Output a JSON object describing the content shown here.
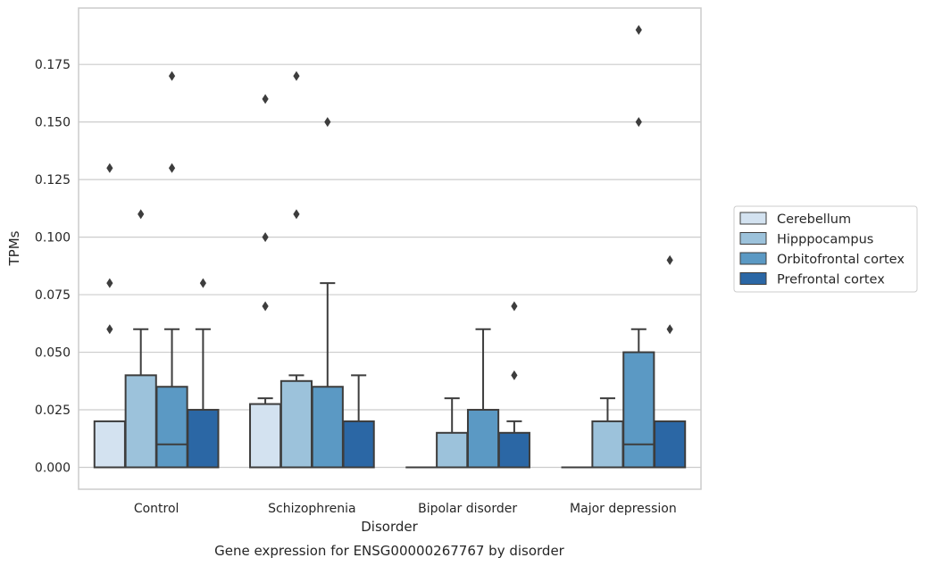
{
  "caption": "Gene expression for ENSG00000267767 by disorder",
  "chart_data": {
    "type": "box",
    "xlabel": "Disorder",
    "ylabel": "TPMs",
    "ylim": [
      -0.0095,
      0.1995
    ],
    "yticks": [
      0.0,
      0.025,
      0.05,
      0.075,
      0.1,
      0.125,
      0.15,
      0.175
    ],
    "ytick_labels": [
      "0.000",
      "0.025",
      "0.050",
      "0.075",
      "0.100",
      "0.125",
      "0.150",
      "0.175"
    ],
    "grid": "horizontal",
    "categories": [
      "Control",
      "Schizophrenia",
      "Bipolar disorder",
      "Major depression"
    ],
    "legend_position": "right",
    "series": [
      {
        "name": "Cerebellum",
        "color": "#d3e2f0",
        "boxes": [
          {
            "q1": 0.0,
            "median": 0.0,
            "q3": 0.02,
            "whisker_low": 0.0,
            "whisker_high": 0.02,
            "outliers": [
              0.06,
              0.08,
              0.13
            ]
          },
          {
            "q1": 0.0,
            "median": 0.0,
            "q3": 0.0275,
            "whisker_low": 0.0,
            "whisker_high": 0.03,
            "outliers": [
              0.07,
              0.1,
              0.16
            ]
          },
          {
            "q1": 0.0,
            "median": 0.0,
            "q3": 0.0,
            "whisker_low": 0.0,
            "whisker_high": 0.0,
            "outliers": []
          },
          {
            "q1": 0.0,
            "median": 0.0,
            "q3": 0.0,
            "whisker_low": 0.0,
            "whisker_high": 0.0,
            "outliers": []
          }
        ]
      },
      {
        "name": "Hipppocampus",
        "color": "#9cc2db",
        "boxes": [
          {
            "q1": 0.0,
            "median": 0.0,
            "q3": 0.04,
            "whisker_low": 0.0,
            "whisker_high": 0.06,
            "outliers": [
              0.11
            ]
          },
          {
            "q1": 0.0,
            "median": 0.0,
            "q3": 0.0375,
            "whisker_low": 0.0,
            "whisker_high": 0.04,
            "outliers": [
              0.11,
              0.17
            ]
          },
          {
            "q1": 0.0,
            "median": 0.0,
            "q3": 0.015,
            "whisker_low": 0.0,
            "whisker_high": 0.03,
            "outliers": []
          },
          {
            "q1": 0.0,
            "median": 0.0,
            "q3": 0.02,
            "whisker_low": 0.0,
            "whisker_high": 0.03,
            "outliers": []
          }
        ]
      },
      {
        "name": "Orbitofrontal cortex",
        "color": "#5b99c4",
        "boxes": [
          {
            "q1": 0.0,
            "median": 0.01,
            "q3": 0.035,
            "whisker_low": 0.0,
            "whisker_high": 0.06,
            "outliers": [
              0.13,
              0.17
            ]
          },
          {
            "q1": 0.0,
            "median": 0.0,
            "q3": 0.035,
            "whisker_low": 0.0,
            "whisker_high": 0.08,
            "outliers": [
              0.15
            ]
          },
          {
            "q1": 0.0,
            "median": 0.0,
            "q3": 0.025,
            "whisker_low": 0.0,
            "whisker_high": 0.06,
            "outliers": []
          },
          {
            "q1": 0.0,
            "median": 0.01,
            "q3": 0.05,
            "whisker_low": 0.0,
            "whisker_high": 0.06,
            "outliers": [
              0.15,
              0.19
            ]
          }
        ]
      },
      {
        "name": "Prefrontal cortex",
        "color": "#2b67a5",
        "boxes": [
          {
            "q1": 0.0,
            "median": 0.0,
            "q3": 0.025,
            "whisker_low": 0.0,
            "whisker_high": 0.06,
            "outliers": [
              0.08
            ]
          },
          {
            "q1": 0.0,
            "median": 0.0,
            "q3": 0.02,
            "whisker_low": 0.0,
            "whisker_high": 0.04,
            "outliers": []
          },
          {
            "q1": 0.0,
            "median": 0.0,
            "q3": 0.015,
            "whisker_low": 0.0,
            "whisker_high": 0.02,
            "outliers": [
              0.04,
              0.07
            ]
          },
          {
            "q1": 0.0,
            "median": 0.0,
            "q3": 0.02,
            "whisker_low": 0.0,
            "whisker_high": 0.02,
            "outliers": [
              0.06,
              0.09
            ]
          }
        ]
      }
    ]
  }
}
